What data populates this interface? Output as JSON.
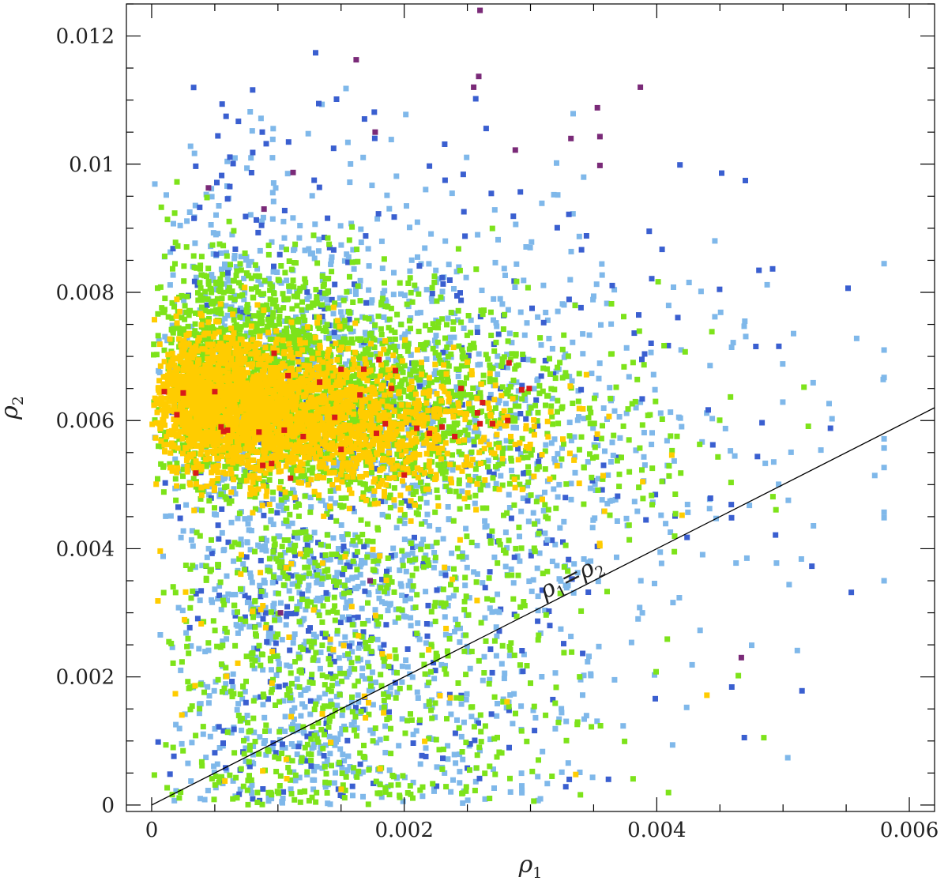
{
  "chart_data": {
    "type": "scatter",
    "title": "",
    "xlabel": "ρ",
    "xlabel_sub": "1",
    "ylabel": "ρ",
    "ylabel_sub": "2",
    "xlim": [
      -0.0002,
      0.0062
    ],
    "ylim": [
      -0.0001,
      0.0125
    ],
    "x_ticks": [
      0,
      0.002,
      0.004,
      0.006
    ],
    "x_tick_labels": [
      "0",
      "0.002",
      "0.004",
      "0.006"
    ],
    "y_ticks": [
      0,
      0.002,
      0.004,
      0.006,
      0.008,
      0.01,
      0.012
    ],
    "y_tick_labels": [
      "0",
      "0.002",
      "0.004",
      "0.006",
      "0.008",
      "0.01",
      "0.012"
    ],
    "grid": false,
    "legend": "none",
    "reference_line": {
      "label_main": "ρ",
      "label_sub1": "1",
      "label_eq": "=",
      "label_main2": "ρ",
      "label_sub2": "2",
      "x": [
        0,
        0.0062
      ],
      "y": [
        0,
        0.0062
      ]
    },
    "series": [
      {
        "color": "#d81a1a",
        "points": [
          [
            0.0001,
            0.00645
          ],
          [
            0.00025,
            0.00643
          ],
          [
            0.0005,
            0.00645
          ],
          [
            0.00035,
            0.00518
          ],
          [
            0.0002,
            0.00609
          ],
          [
            0.0006,
            0.00585
          ],
          [
            0.00057,
            0.00583
          ],
          [
            0.00085,
            0.00582
          ],
          [
            0.00095,
            0.00533
          ],
          [
            0.00088,
            0.0053
          ],
          [
            0.00105,
            0.00585
          ],
          [
            0.0012,
            0.00575
          ],
          [
            0.0011,
            0.0051
          ],
          [
            0.00133,
            0.0066
          ],
          [
            0.00145,
            0.00605
          ],
          [
            0.0015,
            0.0068
          ],
          [
            0.0015,
            0.00555
          ],
          [
            0.00168,
            0.0068
          ],
          [
            0.0018,
            0.00695
          ],
          [
            0.00185,
            0.00595
          ],
          [
            0.0019,
            0.0065
          ],
          [
            0.00193,
            0.00678
          ],
          [
            0.002,
            0.00515
          ],
          [
            0.0021,
            0.00588
          ],
          [
            0.0022,
            0.0058
          ],
          [
            0.0023,
            0.0059
          ],
          [
            0.0024,
            0.00575
          ],
          [
            0.00245,
            0.0065
          ],
          [
            0.00258,
            0.00612
          ],
          [
            0.00262,
            0.00628
          ],
          [
            0.0026,
            0.00595
          ],
          [
            0.0027,
            0.00595
          ],
          [
            0.00282,
            0.006
          ],
          [
            0.00283,
            0.0069
          ],
          [
            0.00293,
            0.00648
          ],
          [
            0.00299,
            0.0065
          ],
          [
            0.00097,
            0.00705
          ],
          [
            0.00108,
            0.0067
          ],
          [
            0.00165,
            0.0064
          ],
          [
            0.00178,
            0.0058
          ],
          [
            0.00055,
            0.0059
          ]
        ]
      },
      {
        "color": "#7a2a78",
        "points": [
          [
            0.0026,
            0.0124
          ],
          [
            0.00162,
            0.01163
          ],
          [
            0.00259,
            0.01137
          ],
          [
            0.00255,
            0.0112
          ],
          [
            0.00387,
            0.0112
          ],
          [
            0.00353,
            0.01088
          ],
          [
            0.00355,
            0.01043
          ],
          [
            0.00355,
            0.00998
          ],
          [
            0.00288,
            0.01022
          ],
          [
            0.00177,
            0.0105
          ],
          [
            0.00089,
            0.0093
          ],
          [
            0.00112,
            0.00987
          ],
          [
            0.00332,
            0.0104
          ],
          [
            0.00045,
            0.00963
          ],
          [
            0.00173,
            0.0035
          ],
          [
            0.00467,
            0.0023
          ],
          [
            0.00102,
            0.003
          ]
        ]
      }
    ]
  }
}
